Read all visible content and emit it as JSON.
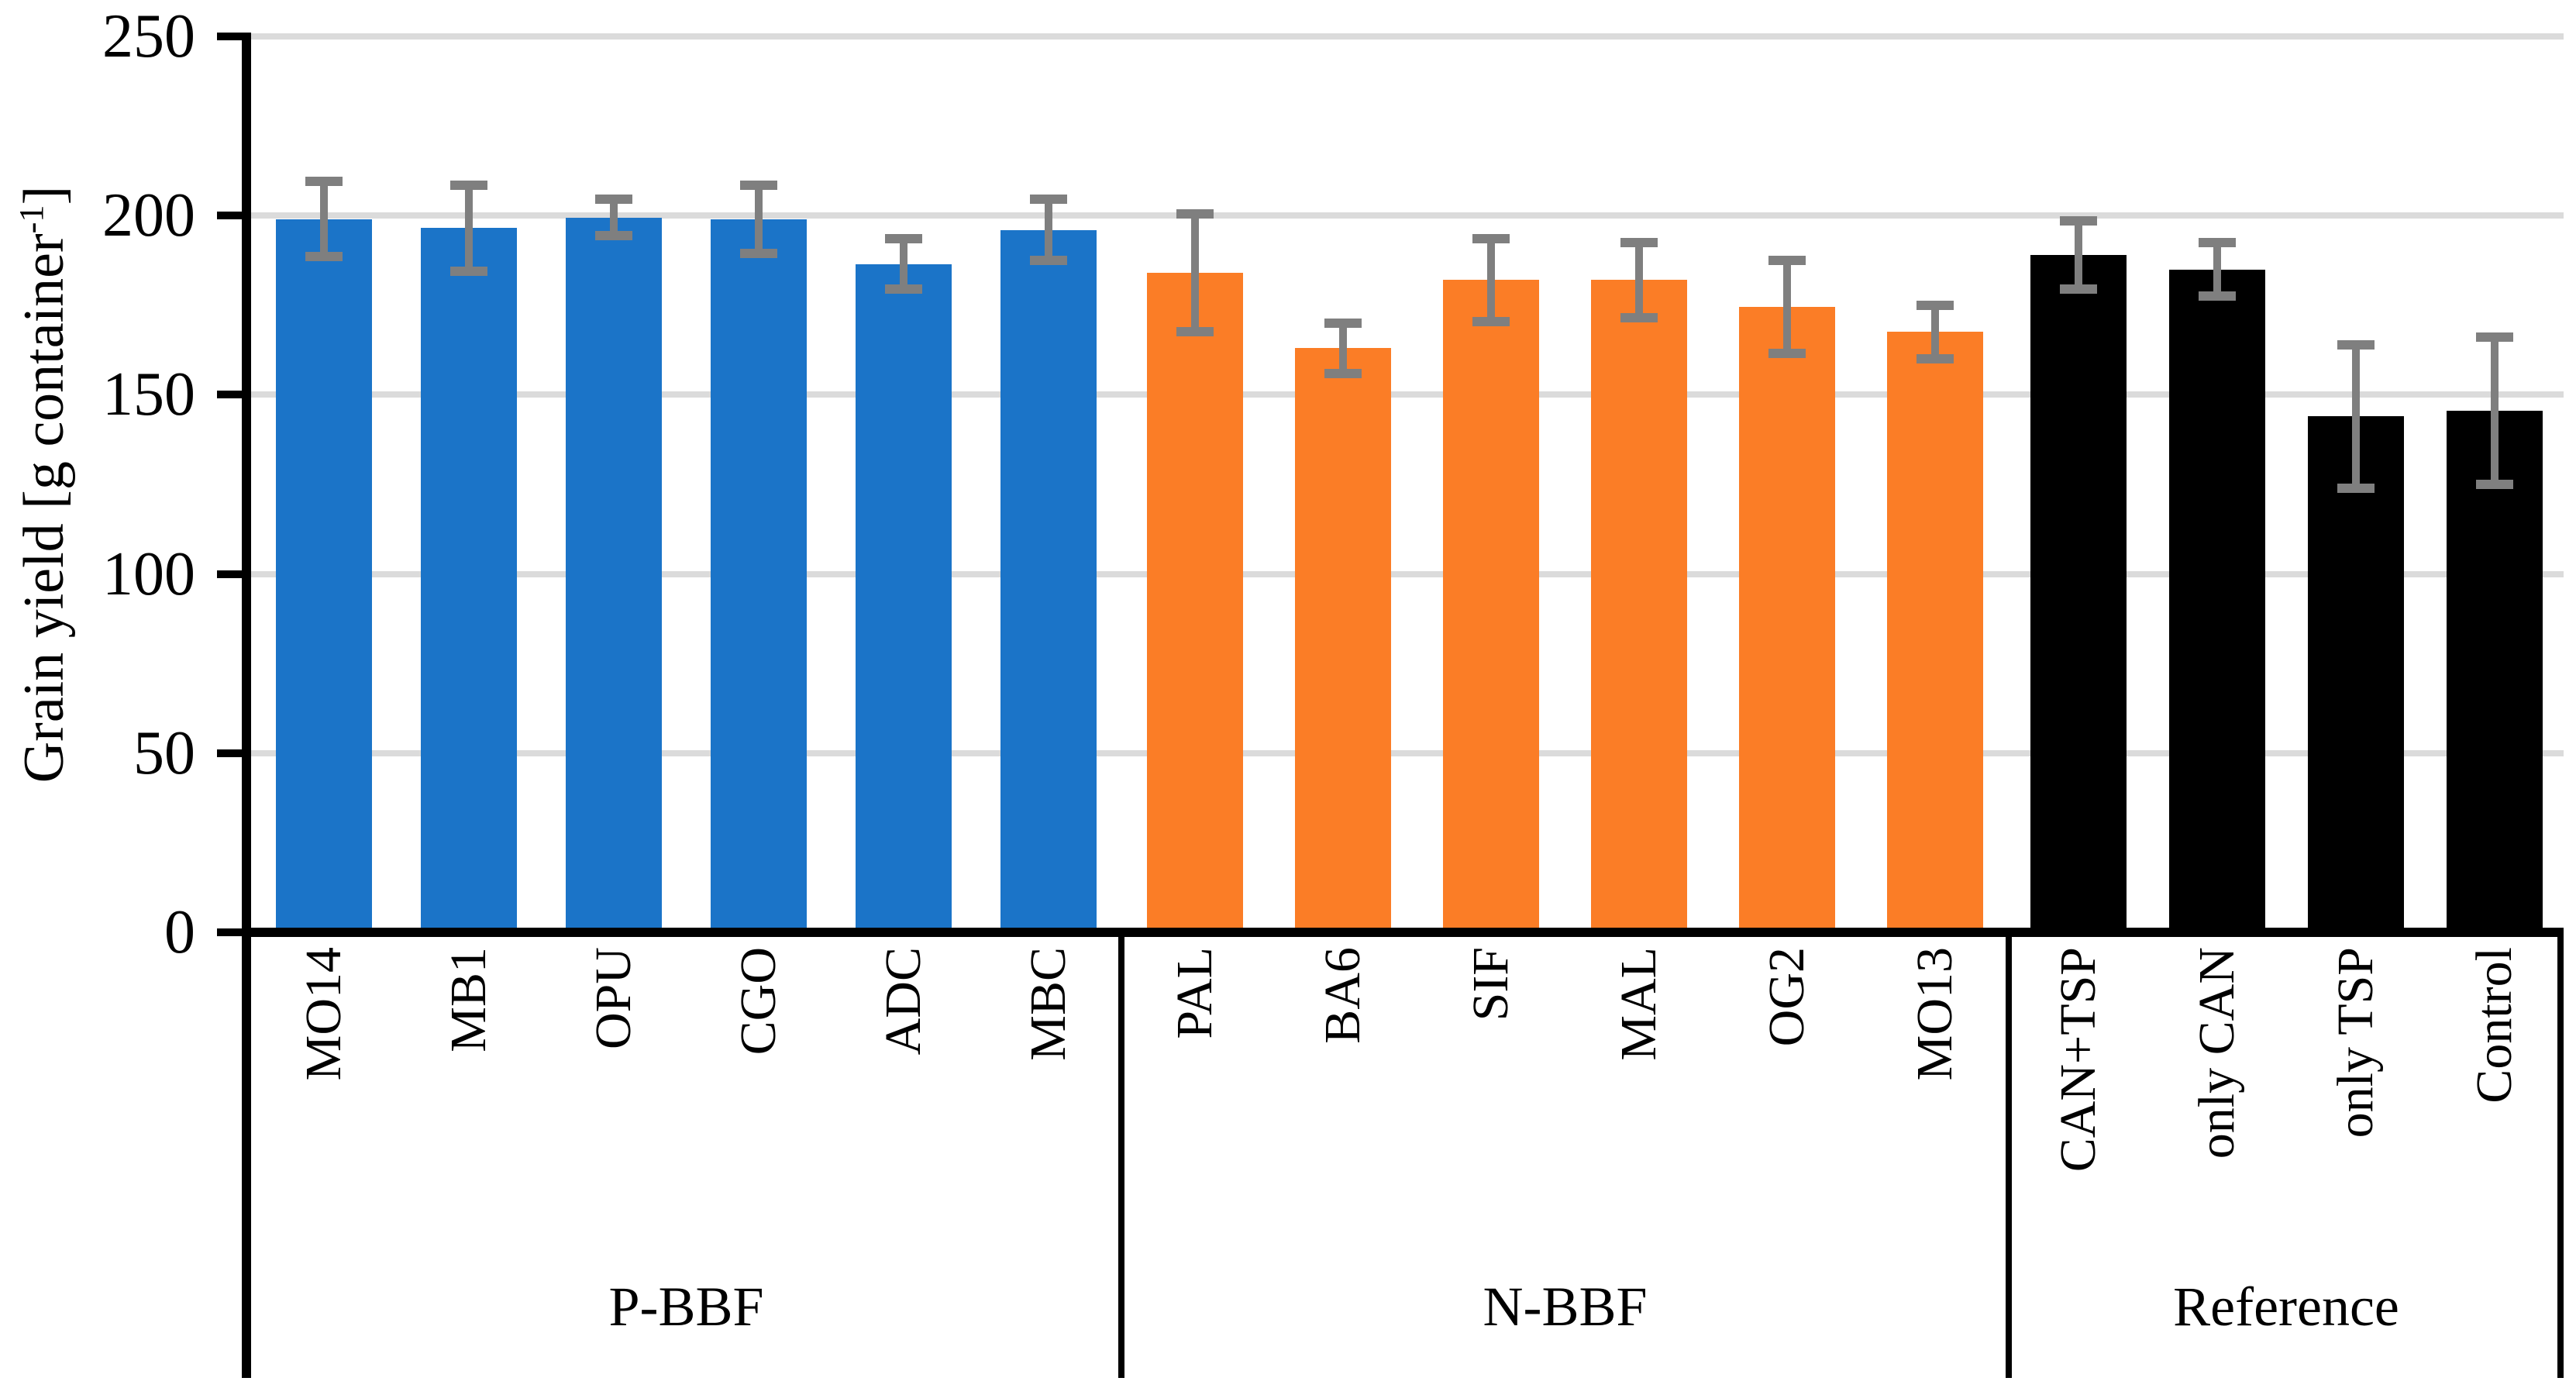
{
  "chart_data": {
    "type": "bar",
    "title": "",
    "ylabel": {
      "prefix": "Grain yield [g container",
      "sup": "-1",
      "suffix": "]"
    },
    "xlabel": "",
    "ylim": [
      0,
      250
    ],
    "yticks": [
      0,
      50,
      100,
      150,
      200,
      250
    ],
    "grid": "horizontal-gridlines-on",
    "legend": "none",
    "gridline_color": "#DBDBDB",
    "error_bar_color": "#7F7F7F",
    "axis_color": "#000000",
    "groups": [
      {
        "name": "P-BBF",
        "color": "#1B74C8",
        "bars": [
          {
            "label": "MO14",
            "value": 199,
            "error": 10.5
          },
          {
            "label": "MB1",
            "value": 196.5,
            "error": 12
          },
          {
            "label": "OPU",
            "value": 199.5,
            "error": 5
          },
          {
            "label": "CGO",
            "value": 199,
            "error": 9.5
          },
          {
            "label": "ADC",
            "value": 186.5,
            "error": 7
          },
          {
            "label": "MBC",
            "value": 196,
            "error": 8.5
          }
        ]
      },
      {
        "name": "N-BBF",
        "color": "#FB7D26",
        "bars": [
          {
            "label": "PAL",
            "value": 184,
            "error": 16.5
          },
          {
            "label": "BA6",
            "value": 163,
            "error": 7
          },
          {
            "label": "SIF",
            "value": 182,
            "error": 11.5
          },
          {
            "label": "MAL",
            "value": 182,
            "error": 10.5
          },
          {
            "label": "OG2",
            "value": 174.5,
            "error": 13
          },
          {
            "label": "MO13",
            "value": 167.5,
            "error": 7.5
          }
        ]
      },
      {
        "name": "Reference",
        "color": "#000000",
        "bars": [
          {
            "label": "CAN+TSP",
            "value": 189,
            "error": 9.5
          },
          {
            "label": "only CAN",
            "value": 185,
            "error": 7.5
          },
          {
            "label": "only TSP",
            "value": 144,
            "error": 20
          },
          {
            "label": "Control",
            "value": 145.5,
            "error": 20.5
          }
        ]
      }
    ]
  }
}
